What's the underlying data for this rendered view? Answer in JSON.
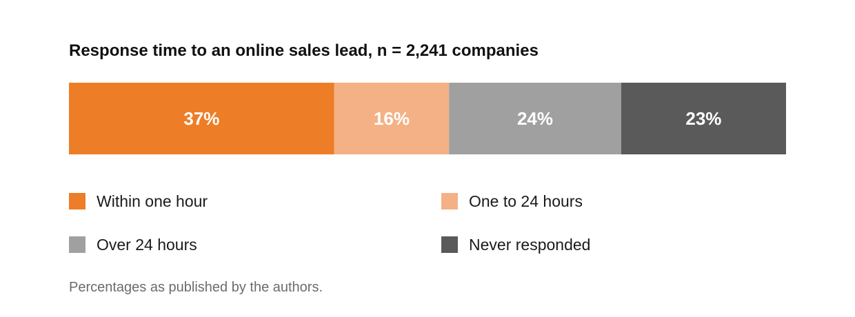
{
  "chart_data": {
    "type": "bar",
    "orientation": "horizontal-stacked-100",
    "title": "Response time to an online sales lead, n = 2,241 companies",
    "categories": [
      "Within one hour",
      "One to 24 hours",
      "Over 24 hours",
      "Never responded"
    ],
    "values": [
      37,
      16,
      24,
      23
    ],
    "value_labels": [
      "37%",
      "16%",
      "24%",
      "23%"
    ],
    "colors": [
      "#ED7D26",
      "#F4B185",
      "#A0A0A0",
      "#5A5A5A"
    ],
    "label_color": "#FFFFFF",
    "legend_placement": "bottom",
    "grid": false,
    "footnote": "Percentages as published by the authors."
  }
}
